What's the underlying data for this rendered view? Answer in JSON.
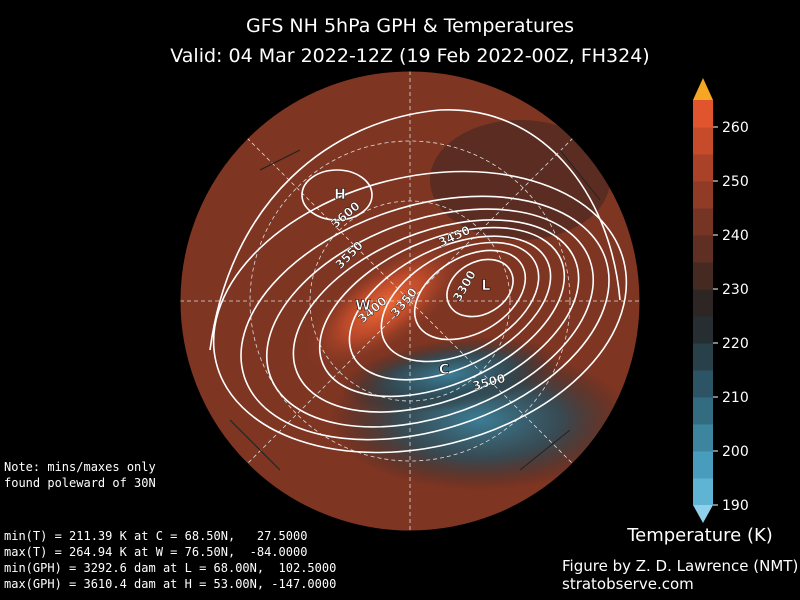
{
  "title": [
    "GFS NH 5hPa GPH & Temperatures",
    "Valid: 04 Mar 2022-12Z  (19 Feb 2022-00Z, FH324)"
  ],
  "map": {
    "markers": [
      "H",
      "L",
      "W",
      "C"
    ],
    "contour_labels": [
      "3600",
      "3550",
      "3450",
      "3400",
      "3350",
      "3300",
      "3500"
    ]
  },
  "colorbar": {
    "label": "Temperature (K)",
    "range": [
      190,
      265
    ],
    "ticks": [
      190,
      200,
      210,
      220,
      230,
      240,
      250,
      260
    ],
    "colors": [
      "#5fb3d3",
      "#4a9cbc",
      "#3d849f",
      "#336b80",
      "#2c5464",
      "#27404a",
      "#262e32",
      "#2e2624",
      "#452a22",
      "#5e2f22",
      "#763524",
      "#8f3b25",
      "#a94228",
      "#c64b2b",
      "#e0552e"
    ],
    "over_color": "#f5a623",
    "under_color": "#8fd0ea"
  },
  "note": [
    "Note: mins/maxes only",
    "found poleward of 30N"
  ],
  "stats": [
    "min(T) = 211.39 K at C = 68.50N,   27.5000",
    "max(T) = 264.94 K at W = 76.50N,  -84.0000",
    "min(GPH) = 3292.6 dam at L = 68.00N,  102.5000",
    "max(GPH) = 3610.4 dam at H = 53.00N, -147.0000"
  ],
  "credit": [
    "Figure by Z. D. Lawrence (NMT)",
    "stratobserve.com"
  ]
}
